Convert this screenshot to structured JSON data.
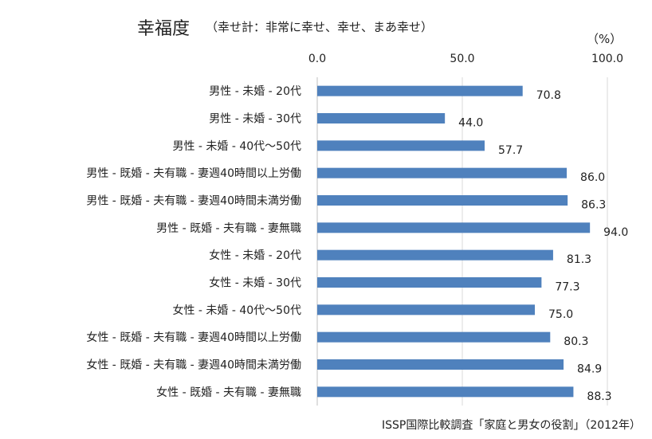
{
  "title": "幸福度",
  "subtitle": "（幸せ計：非常に幸せ、幸せ、まあ幸せ）",
  "unit": "（%）",
  "source": "ISSP国際比較調査「家庭と男女の役割」（2012年）",
  "chart_data": {
    "type": "bar",
    "orientation": "horizontal",
    "title": "幸福度",
    "subtitle": "（幸せ計：非常に幸せ、幸せ、まあ幸せ）",
    "unit": "（%）",
    "xlim": [
      0,
      100
    ],
    "ticks": [
      0,
      50,
      100
    ],
    "tick_labels": [
      "0.0",
      "50.0",
      "100.0"
    ],
    "axis_position": "top",
    "grid": true,
    "bar_color": "#4F81BD",
    "categories": [
      "男性 - 未婚 - 20代",
      "男性 - 未婚 - 30代",
      "男性 - 未婚 - 40代～50代",
      "男性 - 既婚 - 夫有職 - 妻週40時間以上労働",
      "男性 - 既婚 - 夫有職 - 妻週40時間未満労働",
      "男性 - 既婚 - 夫有職 - 妻無職",
      "女性 - 未婚 - 20代",
      "女性 - 未婚 - 30代",
      "女性 - 未婚 - 40代～50代",
      "女性 - 既婚 - 夫有職 - 妻週40時間以上労働",
      "女性 - 既婚 - 夫有職 - 妻週40時間未満労働",
      "女性 - 既婚 - 夫有職 - 妻無職"
    ],
    "values": [
      70.8,
      44.0,
      57.7,
      86.0,
      86.3,
      94.0,
      81.3,
      77.3,
      75.0,
      80.3,
      84.9,
      88.3
    ],
    "value_labels": [
      "70.8",
      "44.0",
      "57.7",
      "86.0",
      "86.3",
      "94.0",
      "81.3",
      "77.3",
      "75.0",
      "80.3",
      "84.9",
      "88.3"
    ]
  }
}
